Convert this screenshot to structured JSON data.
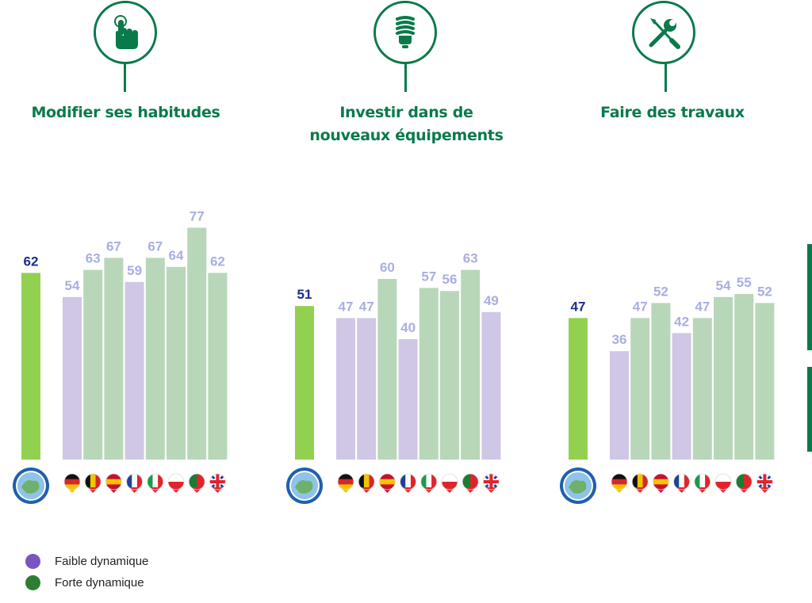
{
  "colors": {
    "accent": "#0a7a4b",
    "eu_bar": "#92d14f",
    "eu_value": "#1f2b8f",
    "low_bar": "#d0c7e6",
    "high_bar": "#b8d7b9",
    "country_value": "#a9aee3",
    "legend_low": "#7a55c0",
    "legend_high": "#2e7d32"
  },
  "icons": [
    "pointing-hand-icon",
    "light-bulb-icon",
    "tools-icon"
  ],
  "legend": {
    "low_label": "Faible dynamique",
    "high_label": "Forte dynamique"
  },
  "chart_data": [
    {
      "type": "bar",
      "title": "Modifier ses habitudes",
      "categories": [
        "EU",
        "DE",
        "BE",
        "ES",
        "FR",
        "IT",
        "PL",
        "PT",
        "UK"
      ],
      "values": [
        62,
        54,
        63,
        67,
        59,
        67,
        64,
        77,
        62
      ],
      "dynamics": [
        "eu",
        "low",
        "high",
        "high",
        "low",
        "high",
        "high",
        "high",
        "high"
      ],
      "ylim": [
        0,
        100
      ]
    },
    {
      "type": "bar",
      "title": "Investir dans de\nnouveaux équipements",
      "categories": [
        "EU",
        "DE",
        "BE",
        "ES",
        "FR",
        "IT",
        "PL",
        "PT",
        "UK"
      ],
      "values": [
        51,
        47,
        47,
        60,
        40,
        57,
        56,
        63,
        49
      ],
      "dynamics": [
        "eu",
        "low",
        "low",
        "high",
        "low",
        "high",
        "high",
        "high",
        "low"
      ],
      "ylim": [
        0,
        100
      ]
    },
    {
      "type": "bar",
      "title": "Faire des travaux",
      "categories": [
        "EU",
        "DE",
        "BE",
        "ES",
        "FR",
        "IT",
        "PL",
        "PT",
        "UK"
      ],
      "values": [
        47,
        36,
        47,
        52,
        42,
        47,
        54,
        55,
        52
      ],
      "dynamics": [
        "eu",
        "low",
        "high",
        "high",
        "low",
        "high",
        "high",
        "high",
        "high"
      ],
      "ylim": [
        0,
        100
      ]
    }
  ]
}
